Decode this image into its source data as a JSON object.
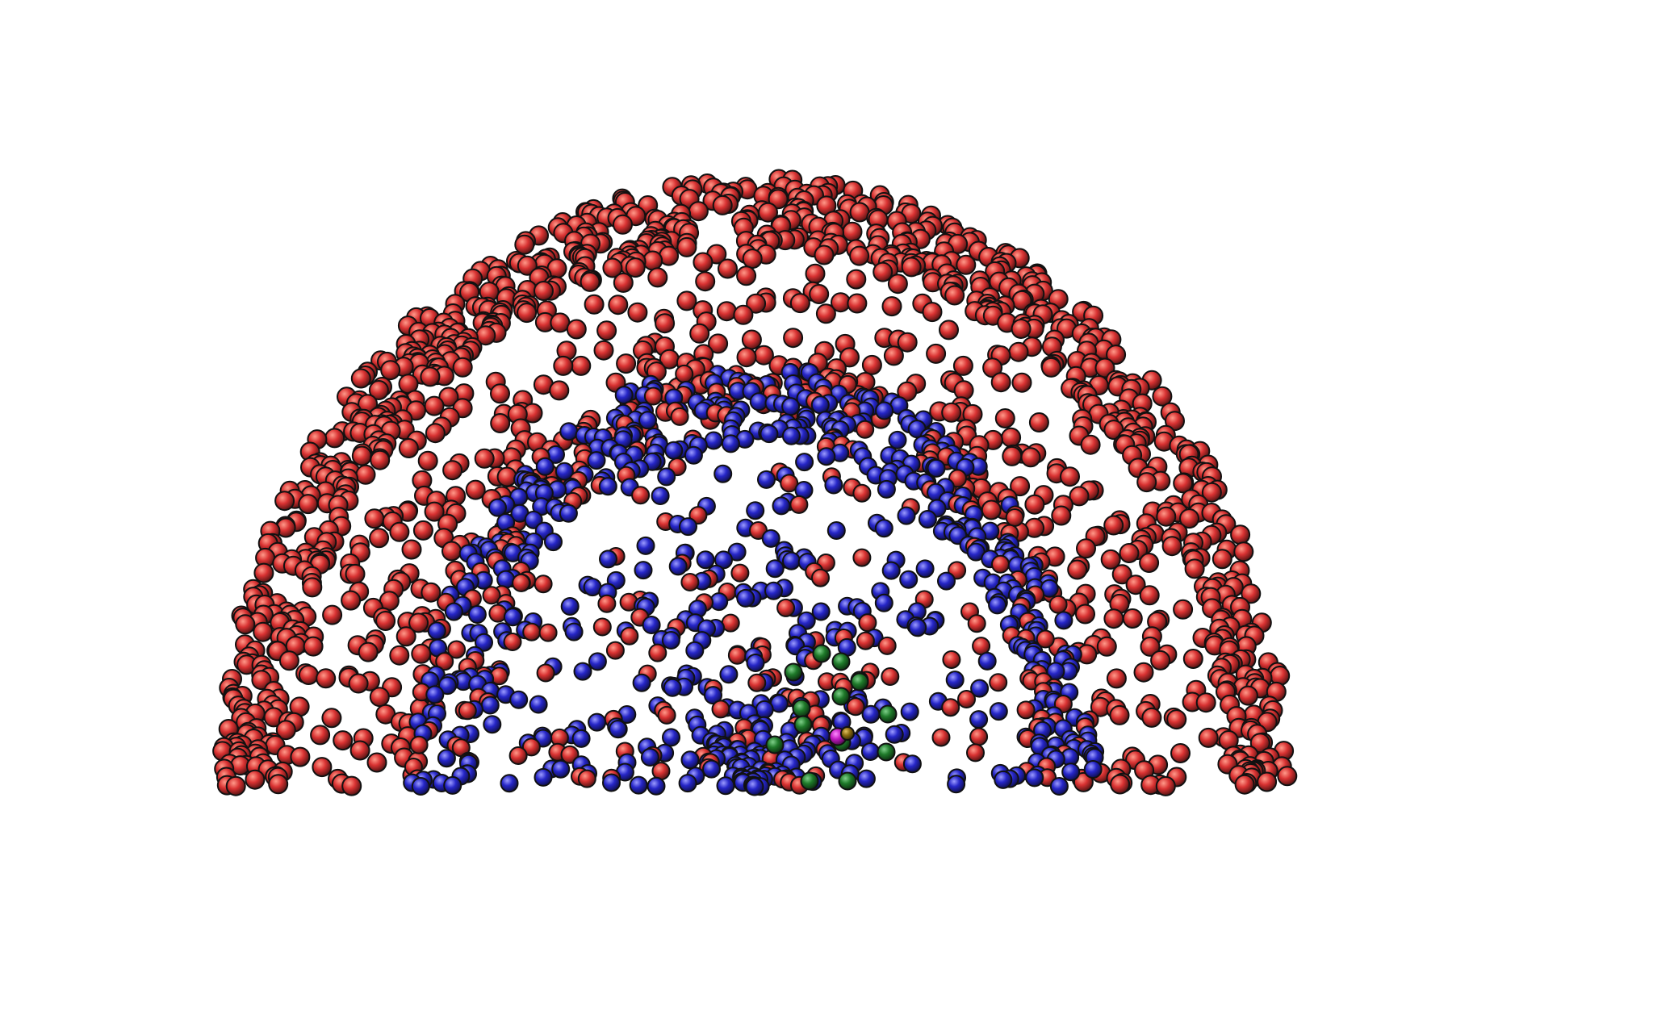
{
  "scene": {
    "description_visible_text": "",
    "background": "#ffffff",
    "seed": 20240611,
    "outer_shell": {
      "color": "#d93232",
      "highlight": "#ff9a8a",
      "count": 1250
    },
    "inner_shell": {
      "color": "#2626c8",
      "highlight": "#9c9cff",
      "count": 900
    },
    "core_markers": {
      "color": "#1f7a2a",
      "highlight": "#7fd08a",
      "count": 14
    },
    "special_markers": [
      {
        "color": "#c018c0",
        "highlight": "#ff8cff"
      },
      {
        "color": "#8a6a10",
        "highlight": "#e2c060"
      }
    ]
  }
}
